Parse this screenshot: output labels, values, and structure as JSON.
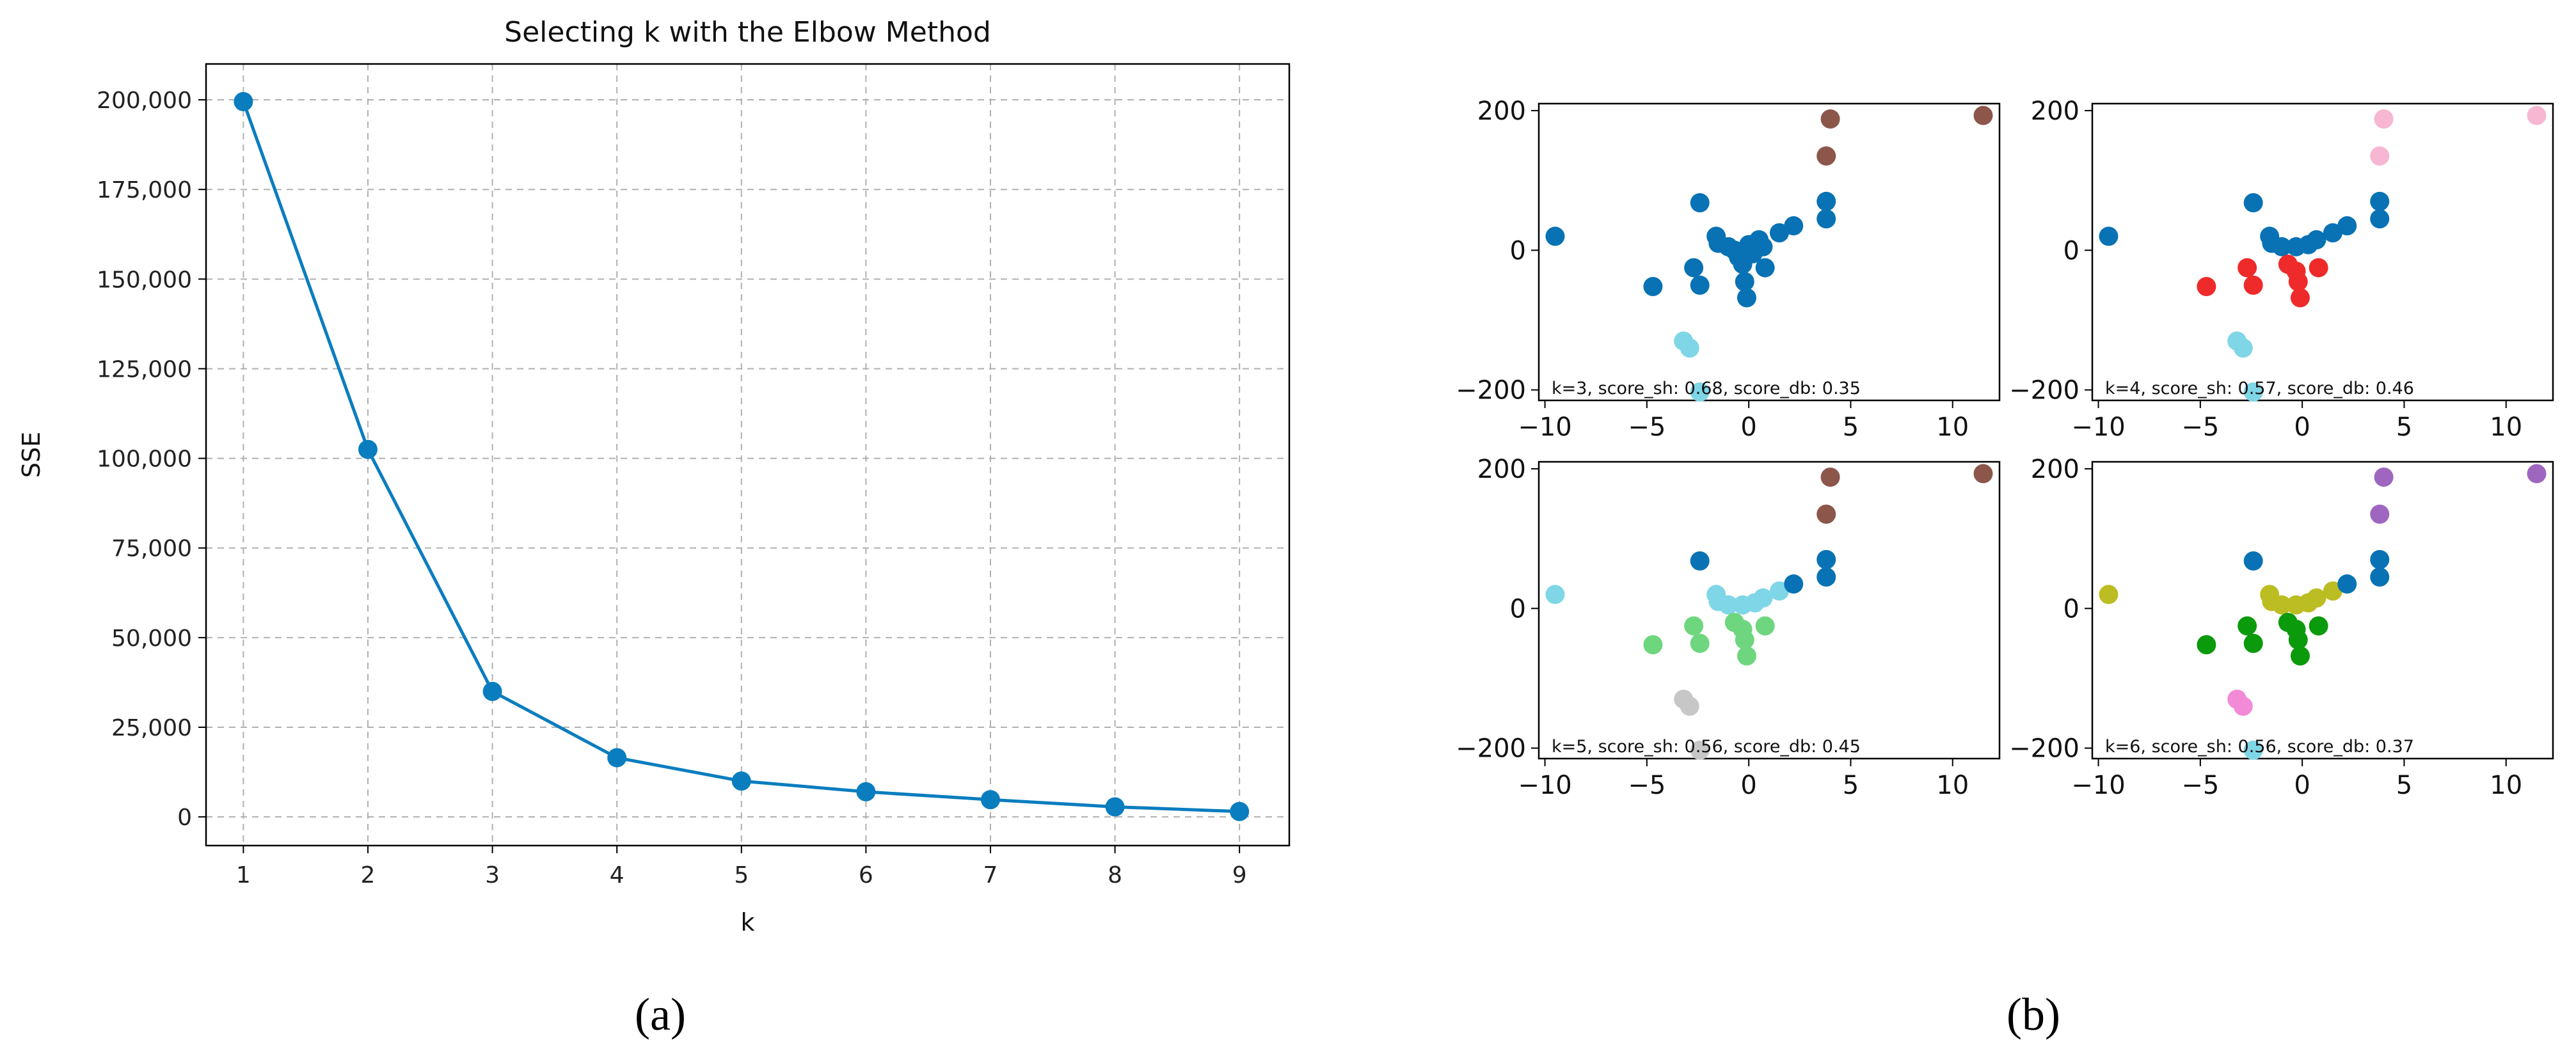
{
  "colors": {
    "primary_line": "#0a7dbf",
    "cluster_blue": "#0872b4",
    "cluster_brown": "#8c564b",
    "cluster_cyan": "#7fd6e6",
    "cluster_red": "#ee2a2a",
    "cluster_pink": "#f7b6d2",
    "cluster_green_light": "#6ed67e",
    "cluster_grey": "#c7c7c7",
    "cluster_olive": "#bcbd22",
    "cluster_green_dark": "#0b9a0b",
    "cluster_purple": "#9f66c0",
    "cluster_pink_hot": "#f28ad8"
  },
  "captions": {
    "left": "(a)",
    "right": "(b)"
  },
  "chart_data": [
    {
      "type": "line",
      "title": "Selecting k with the Elbow Method",
      "xlabel": "k",
      "ylabel": "SSE",
      "x": [
        1,
        2,
        3,
        4,
        5,
        6,
        7,
        8,
        9
      ],
      "series": [
        {
          "values": [
            199500,
            102500,
            35000,
            16500,
            10000,
            7000,
            4800,
            2800,
            1500
          ]
        }
      ],
      "xlim": [
        0.7,
        9.4
      ],
      "ylim": [
        -8000,
        210000
      ],
      "xticks": [
        1,
        2,
        3,
        4,
        5,
        6,
        7,
        8,
        9
      ],
      "yticks": [
        0,
        25000,
        50000,
        75000,
        100000,
        125000,
        150000,
        175000,
        200000
      ],
      "ytick_labels": [
        "0",
        "25,000",
        "50,000",
        "75,000",
        "100,000",
        "125,000",
        "150,000",
        "175,000",
        "200,000"
      ],
      "grid": true,
      "marker": "circle"
    },
    {
      "type": "scatter",
      "panel": "k=3",
      "annotation": "k=3, score_sh: 0.68, score_db: 0.35",
      "xlim": [
        -10.3,
        12.3
      ],
      "ylim": [
        -215,
        210
      ],
      "xticks": [
        -10,
        -5,
        0,
        5,
        10
      ],
      "yticks": [
        -200,
        0,
        200
      ],
      "points": [
        {
          "x": -9.5,
          "y": 20,
          "c": "blue"
        },
        {
          "x": -4.7,
          "y": -52,
          "c": "blue"
        },
        {
          "x": -2.7,
          "y": -25,
          "c": "blue"
        },
        {
          "x": -2.4,
          "y": 68,
          "c": "blue"
        },
        {
          "x": -2.4,
          "y": -50,
          "c": "blue"
        },
        {
          "x": -1.6,
          "y": 20,
          "c": "blue"
        },
        {
          "x": -1.5,
          "y": 10,
          "c": "blue"
        },
        {
          "x": -1.0,
          "y": 5,
          "c": "blue"
        },
        {
          "x": -0.7,
          "y": 0,
          "c": "blue"
        },
        {
          "x": -0.5,
          "y": -10,
          "c": "blue"
        },
        {
          "x": -0.3,
          "y": -20,
          "c": "blue"
        },
        {
          "x": -0.2,
          "y": -45,
          "c": "blue"
        },
        {
          "x": -0.1,
          "y": -68,
          "c": "blue"
        },
        {
          "x": 0.0,
          "y": 8,
          "c": "blue"
        },
        {
          "x": 0.2,
          "y": -5,
          "c": "blue"
        },
        {
          "x": 0.5,
          "y": 15,
          "c": "blue"
        },
        {
          "x": 0.7,
          "y": 5,
          "c": "blue"
        },
        {
          "x": 0.8,
          "y": -25,
          "c": "blue"
        },
        {
          "x": 1.5,
          "y": 25,
          "c": "blue"
        },
        {
          "x": 2.2,
          "y": 35,
          "c": "blue"
        },
        {
          "x": 3.8,
          "y": 45,
          "c": "blue"
        },
        {
          "x": 3.8,
          "y": 70,
          "c": "blue"
        },
        {
          "x": 3.8,
          "y": 135,
          "c": "brown"
        },
        {
          "x": 4.0,
          "y": 188,
          "c": "brown"
        },
        {
          "x": 11.5,
          "y": 193,
          "c": "brown"
        },
        {
          "x": -3.2,
          "y": -130,
          "c": "cyan"
        },
        {
          "x": -2.9,
          "y": -140,
          "c": "cyan"
        },
        {
          "x": -2.4,
          "y": -203,
          "c": "cyan"
        }
      ]
    },
    {
      "type": "scatter",
      "panel": "k=4",
      "annotation": "k=4, score_sh: 0.57, score_db: 0.46",
      "xlim": [
        -10.3,
        12.3
      ],
      "ylim": [
        -215,
        210
      ],
      "xticks": [
        -10,
        -5,
        0,
        5,
        10
      ],
      "yticks": [
        -200,
        0,
        200
      ],
      "points": [
        {
          "x": -9.5,
          "y": 20,
          "c": "blue"
        },
        {
          "x": -2.4,
          "y": 68,
          "c": "blue"
        },
        {
          "x": -1.6,
          "y": 20,
          "c": "blue"
        },
        {
          "x": -1.5,
          "y": 10,
          "c": "blue"
        },
        {
          "x": -1.0,
          "y": 5,
          "c": "blue"
        },
        {
          "x": -0.3,
          "y": 5,
          "c": "blue"
        },
        {
          "x": 0.3,
          "y": 8,
          "c": "blue"
        },
        {
          "x": 0.7,
          "y": 15,
          "c": "blue"
        },
        {
          "x": 1.5,
          "y": 25,
          "c": "blue"
        },
        {
          "x": 2.2,
          "y": 35,
          "c": "blue"
        },
        {
          "x": 3.8,
          "y": 45,
          "c": "blue"
        },
        {
          "x": 3.8,
          "y": 70,
          "c": "blue"
        },
        {
          "x": -4.7,
          "y": -52,
          "c": "red"
        },
        {
          "x": -2.7,
          "y": -25,
          "c": "red"
        },
        {
          "x": -2.4,
          "y": -50,
          "c": "red"
        },
        {
          "x": -0.7,
          "y": -20,
          "c": "red"
        },
        {
          "x": -0.3,
          "y": -30,
          "c": "red"
        },
        {
          "x": -0.2,
          "y": -45,
          "c": "red"
        },
        {
          "x": -0.1,
          "y": -68,
          "c": "red"
        },
        {
          "x": 0.8,
          "y": -25,
          "c": "red"
        },
        {
          "x": 3.8,
          "y": 135,
          "c": "pink"
        },
        {
          "x": 4.0,
          "y": 188,
          "c": "pink"
        },
        {
          "x": 11.5,
          "y": 193,
          "c": "pink"
        },
        {
          "x": -3.2,
          "y": -130,
          "c": "cyan"
        },
        {
          "x": -2.9,
          "y": -140,
          "c": "cyan"
        },
        {
          "x": -2.4,
          "y": -203,
          "c": "cyan"
        }
      ]
    },
    {
      "type": "scatter",
      "panel": "k=5",
      "annotation": "k=5, score_sh: 0.56, score_db: 0.45",
      "xlim": [
        -10.3,
        12.3
      ],
      "ylim": [
        -215,
        210
      ],
      "xticks": [
        -10,
        -5,
        0,
        5,
        10
      ],
      "yticks": [
        -200,
        0,
        200
      ],
      "points": [
        {
          "x": -9.5,
          "y": 20,
          "c": "cyan"
        },
        {
          "x": -1.6,
          "y": 20,
          "c": "cyan"
        },
        {
          "x": -1.5,
          "y": 10,
          "c": "cyan"
        },
        {
          "x": -1.0,
          "y": 5,
          "c": "cyan"
        },
        {
          "x": -0.3,
          "y": 5,
          "c": "cyan"
        },
        {
          "x": 0.3,
          "y": 8,
          "c": "cyan"
        },
        {
          "x": 0.7,
          "y": 15,
          "c": "cyan"
        },
        {
          "x": 1.5,
          "y": 25,
          "c": "cyan"
        },
        {
          "x": -2.4,
          "y": 68,
          "c": "blue"
        },
        {
          "x": 2.2,
          "y": 35,
          "c": "blue"
        },
        {
          "x": 3.8,
          "y": 45,
          "c": "blue"
        },
        {
          "x": 3.8,
          "y": 70,
          "c": "blue"
        },
        {
          "x": -4.7,
          "y": -52,
          "c": "lightgreen"
        },
        {
          "x": -2.7,
          "y": -25,
          "c": "lightgreen"
        },
        {
          "x": -2.4,
          "y": -50,
          "c": "lightgreen"
        },
        {
          "x": -0.7,
          "y": -20,
          "c": "lightgreen"
        },
        {
          "x": -0.3,
          "y": -30,
          "c": "lightgreen"
        },
        {
          "x": -0.2,
          "y": -45,
          "c": "lightgreen"
        },
        {
          "x": -0.1,
          "y": -68,
          "c": "lightgreen"
        },
        {
          "x": 0.8,
          "y": -25,
          "c": "lightgreen"
        },
        {
          "x": 3.8,
          "y": 135,
          "c": "brown"
        },
        {
          "x": 4.0,
          "y": 188,
          "c": "brown"
        },
        {
          "x": 11.5,
          "y": 193,
          "c": "brown"
        },
        {
          "x": -3.2,
          "y": -130,
          "c": "grey"
        },
        {
          "x": -2.9,
          "y": -140,
          "c": "grey"
        },
        {
          "x": -2.4,
          "y": -203,
          "c": "grey"
        }
      ]
    },
    {
      "type": "scatter",
      "panel": "k=6",
      "annotation": "k=6, score_sh: 0.56, score_db: 0.37",
      "xlim": [
        -10.3,
        12.3
      ],
      "ylim": [
        -215,
        210
      ],
      "xticks": [
        -10,
        -5,
        0,
        5,
        10
      ],
      "yticks": [
        -200,
        0,
        200
      ],
      "points": [
        {
          "x": -9.5,
          "y": 20,
          "c": "olive"
        },
        {
          "x": -1.6,
          "y": 20,
          "c": "olive"
        },
        {
          "x": -1.5,
          "y": 10,
          "c": "olive"
        },
        {
          "x": -1.0,
          "y": 5,
          "c": "olive"
        },
        {
          "x": -0.3,
          "y": 5,
          "c": "olive"
        },
        {
          "x": 0.3,
          "y": 8,
          "c": "olive"
        },
        {
          "x": 0.7,
          "y": 15,
          "c": "olive"
        },
        {
          "x": 1.5,
          "y": 25,
          "c": "olive"
        },
        {
          "x": -2.4,
          "y": 68,
          "c": "blue"
        },
        {
          "x": 2.2,
          "y": 35,
          "c": "blue"
        },
        {
          "x": 3.8,
          "y": 45,
          "c": "blue"
        },
        {
          "x": 3.8,
          "y": 70,
          "c": "blue"
        },
        {
          "x": -4.7,
          "y": -52,
          "c": "darkgreen"
        },
        {
          "x": -2.7,
          "y": -25,
          "c": "darkgreen"
        },
        {
          "x": -2.4,
          "y": -50,
          "c": "darkgreen"
        },
        {
          "x": -0.7,
          "y": -20,
          "c": "darkgreen"
        },
        {
          "x": -0.3,
          "y": -30,
          "c": "darkgreen"
        },
        {
          "x": -0.2,
          "y": -45,
          "c": "darkgreen"
        },
        {
          "x": -0.1,
          "y": -68,
          "c": "darkgreen"
        },
        {
          "x": 0.8,
          "y": -25,
          "c": "darkgreen"
        },
        {
          "x": 3.8,
          "y": 135,
          "c": "purple"
        },
        {
          "x": 4.0,
          "y": 188,
          "c": "purple"
        },
        {
          "x": 11.5,
          "y": 193,
          "c": "purple"
        },
        {
          "x": -3.2,
          "y": -130,
          "c": "hotpink"
        },
        {
          "x": -2.9,
          "y": -140,
          "c": "hotpink"
        },
        {
          "x": -2.4,
          "y": -203,
          "c": "cyan"
        }
      ]
    }
  ]
}
